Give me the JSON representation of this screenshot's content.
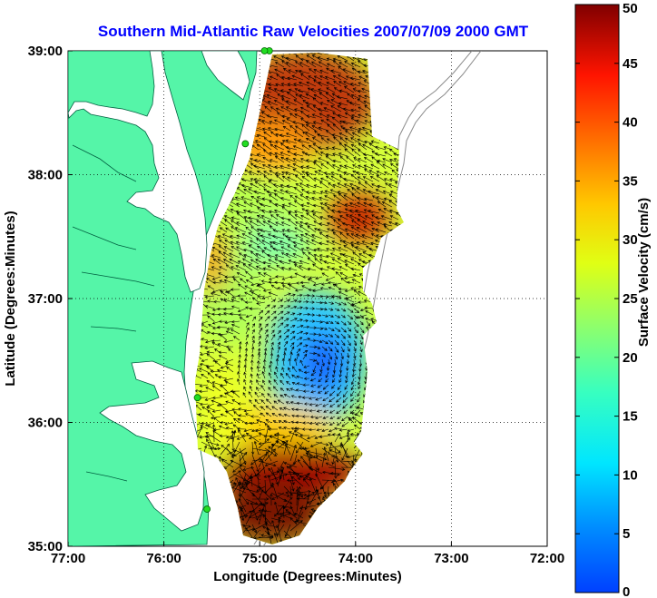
{
  "title": "Southern Mid-Atlantic Raw Velocities 2007/07/09 2000 GMT",
  "map": {
    "xlabel": "Longitude (Degrees:Minutes)",
    "ylabel": "Latitude (Degrees:Minutes)",
    "lon_range": [
      -77,
      -72
    ],
    "lat_range": [
      35,
      39
    ],
    "lon_ticks": [
      {
        "value": -77,
        "label": "77:00"
      },
      {
        "value": -76,
        "label": "76:00"
      },
      {
        "value": -75,
        "label": "75:00"
      },
      {
        "value": -74,
        "label": "74:00"
      },
      {
        "value": -73,
        "label": "73:00"
      },
      {
        "value": -72,
        "label": "72:00"
      }
    ],
    "lat_ticks": [
      {
        "value": 35,
        "label": "35:00"
      },
      {
        "value": 36,
        "label": "36:00"
      },
      {
        "value": 37,
        "label": "37:00"
      },
      {
        "value": 38,
        "label": "38:00"
      },
      {
        "value": 39,
        "label": "39:00"
      }
    ],
    "grid": "dotted",
    "land_color": "#55f5a8",
    "stations": [
      {
        "lon": -74.9,
        "lat": 39.0
      },
      {
        "lon": -74.95,
        "lat": 39.0
      },
      {
        "lon": -75.15,
        "lat": 38.25
      },
      {
        "lon": -75.65,
        "lat": 36.2
      },
      {
        "lon": -75.55,
        "lat": 35.3
      }
    ]
  },
  "colorbar": {
    "label": "Surface Velocity (cm/s)",
    "min": 0,
    "max": 50,
    "ticks": [
      {
        "value": 0,
        "label": "0"
      },
      {
        "value": 5,
        "label": "5"
      },
      {
        "value": 10,
        "label": "10"
      },
      {
        "value": 15,
        "label": "15"
      },
      {
        "value": 20,
        "label": "20"
      },
      {
        "value": 25,
        "label": "25"
      },
      {
        "value": 30,
        "label": "30"
      },
      {
        "value": 35,
        "label": "35"
      },
      {
        "value": 40,
        "label": "40"
      },
      {
        "value": 45,
        "label": "45"
      },
      {
        "value": 50,
        "label": "50"
      }
    ],
    "colormap": "jet"
  }
}
